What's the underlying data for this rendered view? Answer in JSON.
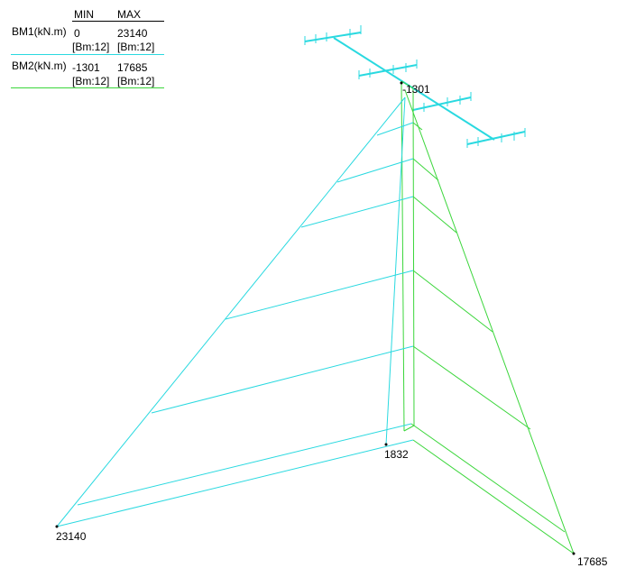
{
  "legend": {
    "header": {
      "min": "MIN",
      "max": "MAX"
    },
    "rows": [
      {
        "label": "BM1(kN.m)",
        "min": "0",
        "max": "23140",
        "min_ref": "[Bm:12]",
        "max_ref": "[Bm:12]",
        "color": "#2ad9e0"
      },
      {
        "label": "BM2(kN.m)",
        "min": "-1301",
        "max": "17685",
        "min_ref": "[Bm:12]",
        "max_ref": "[Bm:12]",
        "color": "#3bd63b"
      }
    ]
  },
  "values": {
    "top": "-1301",
    "mid": "1832",
    "left": "23140",
    "right": "17685"
  },
  "colors": {
    "bm1": "#2ad9e0",
    "bm2": "#3bd63b",
    "frame": "#2ad9e0"
  }
}
